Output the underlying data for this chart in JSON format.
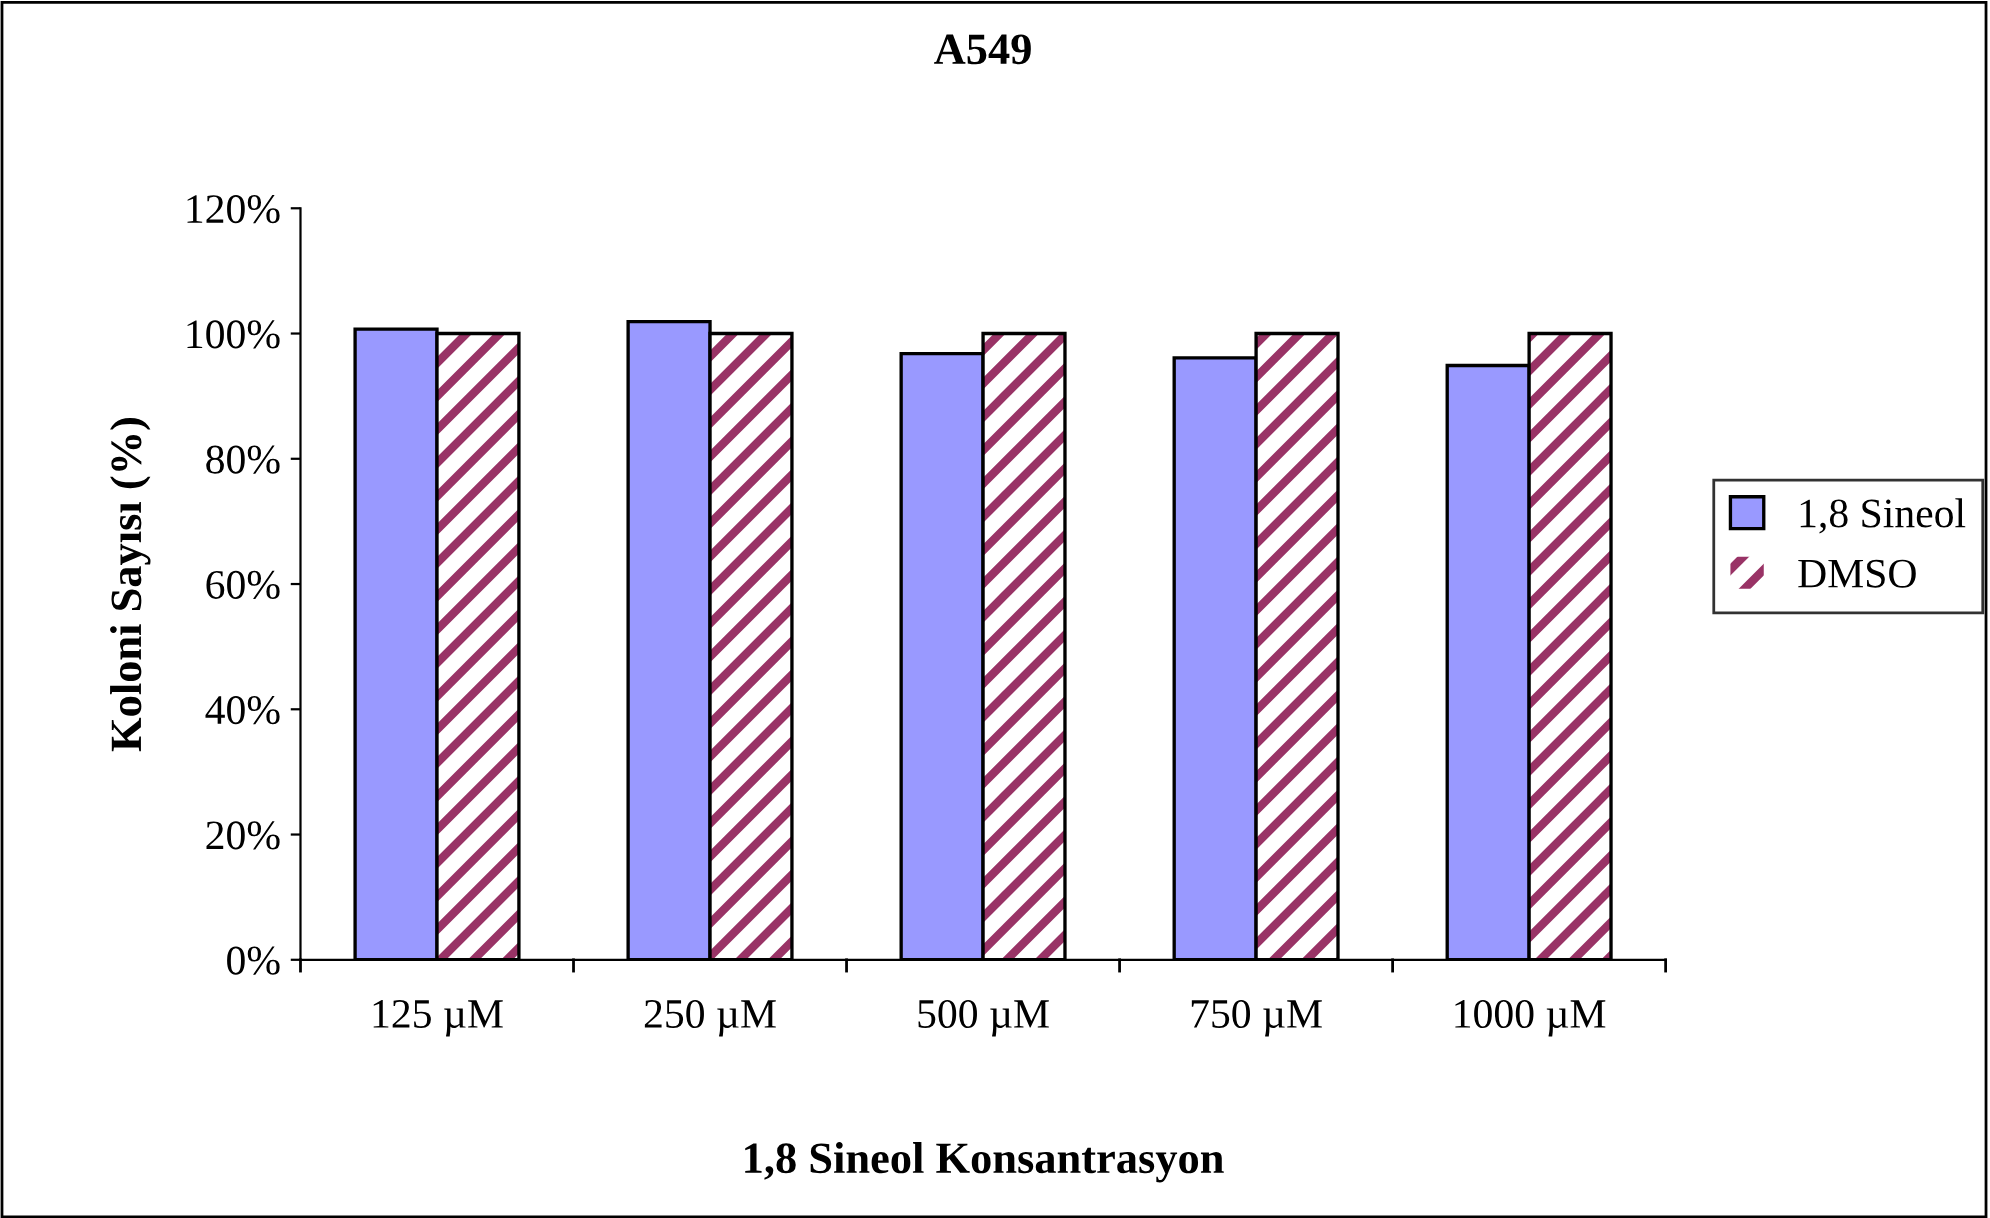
{
  "chart_data": {
    "type": "bar",
    "title": "A549",
    "xlabel": "1,8 Sineol Konsantrasyon",
    "ylabel": "Koloni Sayısı (%)",
    "categories": [
      "125 µM",
      "250 µM",
      "500 µM",
      "750 µM",
      "1000 µM"
    ],
    "series": [
      {
        "name": "1,8 Sineol",
        "color": "#9999ff",
        "values": [
          100.7,
          101.9,
          96.8,
          96.1,
          94.9
        ]
      },
      {
        "name": "DMSO",
        "color": "#993366",
        "values": [
          100,
          100,
          100,
          100,
          100
        ]
      }
    ],
    "ylim": [
      0,
      120
    ],
    "yticks": [
      {
        "value": 0,
        "label": "0%"
      },
      {
        "value": 20,
        "label": "20%"
      },
      {
        "value": 40,
        "label": "40%"
      },
      {
        "value": 60,
        "label": "60%"
      },
      {
        "value": 80,
        "label": "80%"
      },
      {
        "value": 100,
        "label": "100%"
      },
      {
        "value": 120,
        "label": "120%"
      }
    ],
    "grid": false,
    "legend": "right"
  }
}
